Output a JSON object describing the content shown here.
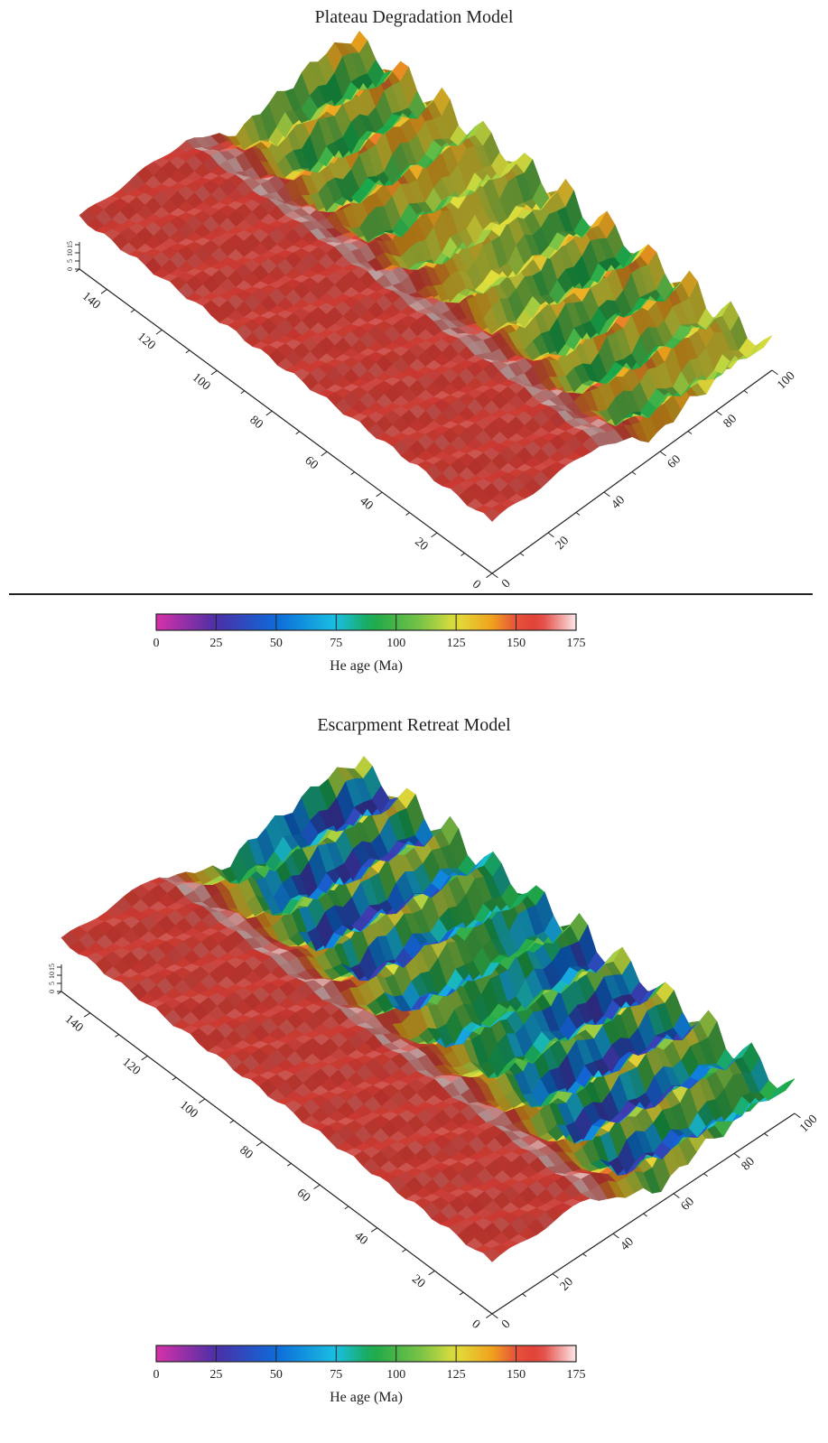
{
  "chart_data": [
    {
      "type": "surface",
      "title": "Plateau Degradation Model",
      "x_ticks": [
        0,
        20,
        40,
        60,
        80,
        100,
        120,
        140
      ],
      "y_ticks": [
        0,
        20,
        40,
        60,
        80,
        100
      ],
      "z_ticks": [
        "0",
        "5",
        "10",
        "15"
      ],
      "colorbar": {
        "label": "He age (Ma)",
        "ticks": [
          0,
          25,
          50,
          75,
          100,
          125,
          150,
          175
        ],
        "colors": [
          "#d631a8",
          "#4b2fa7",
          "#0d6ad9",
          "#19c0e3",
          "#1aa84b",
          "#b9d84a",
          "#f0a11d",
          "#f35c4f"
        ]
      },
      "surface_summary": {
        "plateau_age_ma": 160,
        "valley_floor_age_ma_min": 90,
        "valley_floor_age_ma_max": 125
      }
    },
    {
      "type": "surface",
      "title": "Escarpment Retreat Model",
      "x_ticks": [
        0,
        20,
        40,
        60,
        80,
        100,
        120,
        140
      ],
      "y_ticks": [
        0,
        20,
        40,
        60,
        80,
        100
      ],
      "z_ticks": [
        "0",
        "5",
        "10",
        "15"
      ],
      "colorbar": {
        "label": "He age (Ma)",
        "ticks": [
          0,
          25,
          50,
          75,
          100,
          125,
          150,
          175
        ],
        "colors": [
          "#d631a8",
          "#4b2fa7",
          "#0d6ad9",
          "#19c0e3",
          "#1aa84b",
          "#b9d84a",
          "#f0a11d",
          "#f35c4f"
        ]
      },
      "surface_summary": {
        "plateau_age_ma": 160,
        "valley_floor_age_ma_min": 30,
        "valley_floor_age_ma_max": 95
      }
    }
  ]
}
